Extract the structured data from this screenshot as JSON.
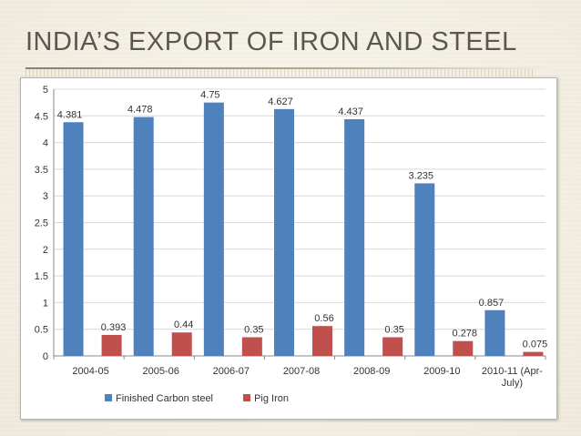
{
  "slide": {
    "title": "INDIA’S EXPORT OF IRON AND STEEL"
  },
  "colors": {
    "series_1": "#4f81bd",
    "series_2": "#c0504d",
    "grid": "#d9d9d9",
    "axis": "#888888",
    "text": "#333333"
  },
  "chart_data": {
    "type": "bar",
    "title": "INDIA’S EXPORT OF IRON AND STEEL",
    "xlabel": "",
    "ylabel": "",
    "categories": [
      "2004-05",
      "2005-06",
      "2006-07",
      "2007-08",
      "2008-09",
      "2009-10",
      "2010-11 (Apr-July)"
    ],
    "category_lines": [
      [
        "2004-05"
      ],
      [
        "2005-06"
      ],
      [
        "2006-07"
      ],
      [
        "2007-08"
      ],
      [
        "2008-09"
      ],
      [
        "2009-10"
      ],
      [
        "2010-11 (Apr-",
        "July)"
      ]
    ],
    "series": [
      {
        "name": "Finished Carbon steel",
        "values": [
          4.381,
          4.478,
          4.75,
          4.627,
          4.437,
          3.235,
          0.857
        ],
        "labels": [
          "4.381",
          "4.478",
          "4.75",
          "4.627",
          "4.437",
          "3.235",
          "0.857"
        ]
      },
      {
        "name": "Pig Iron",
        "values": [
          0.393,
          0.44,
          0.35,
          0.56,
          0.35,
          0.278,
          0.075
        ],
        "labels": [
          "0.393",
          "0.44",
          "0.35",
          "0.56",
          "0.35",
          "0.278",
          "0.075"
        ]
      }
    ],
    "ylim": [
      0,
      5
    ],
    "yticks": [
      "0",
      "0.5",
      "1",
      "1.5",
      "2",
      "2.5",
      "3",
      "3.5",
      "4",
      "4.5",
      "5"
    ],
    "grid": true,
    "legend_position": "bottom"
  }
}
